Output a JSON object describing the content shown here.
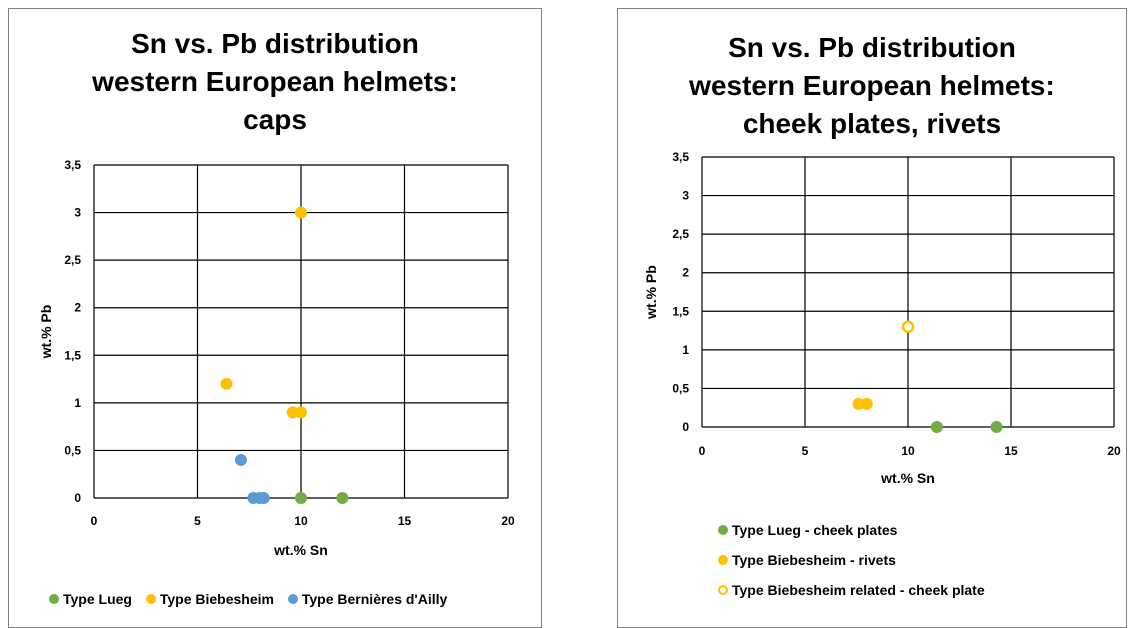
{
  "colors": {
    "lueg": "#70ad47",
    "biebesheim": "#ffc000",
    "bernieres": "#5b9bd5",
    "grid": "#000000"
  },
  "chart_data": [
    {
      "type": "scatter",
      "title_lines": [
        "Sn vs. Pb distribution",
        "western European helmets:",
        "caps"
      ],
      "xlabel": "wt.% Sn",
      "ylabel": "wt.% Pb",
      "xlim": [
        0,
        20
      ],
      "ylim": [
        0,
        3.5
      ],
      "xticks": [
        "0",
        "5",
        "10",
        "15",
        "20"
      ],
      "yticks": [
        "0",
        "0,5",
        "1",
        "1,5",
        "2",
        "2,5",
        "3",
        "3,5"
      ],
      "grid": true,
      "legend_position": "bottom",
      "series": [
        {
          "name": "Type Lueg",
          "color": "#70ad47",
          "marker": "filled",
          "points": [
            [
              10,
              0
            ],
            [
              12,
              0
            ]
          ]
        },
        {
          "name": "Type Biebesheim",
          "color": "#ffc000",
          "marker": "filled",
          "points": [
            [
              10,
              3
            ],
            [
              6.4,
              1.2
            ],
            [
              9.6,
              0.9
            ],
            [
              10,
              0.9
            ]
          ]
        },
        {
          "name": "Type Bernières d'Ailly",
          "color": "#5b9bd5",
          "marker": "filled",
          "points": [
            [
              7.1,
              0.4
            ],
            [
              7.7,
              0
            ],
            [
              8,
              0
            ],
            [
              8.2,
              0
            ]
          ]
        }
      ]
    },
    {
      "type": "scatter",
      "title_lines": [
        "Sn vs. Pb distribution",
        "western European helmets:",
        "cheek plates, rivets"
      ],
      "xlabel": "wt.% Sn",
      "ylabel": "wt.% Pb",
      "xlim": [
        0,
        20
      ],
      "ylim": [
        0,
        3.5
      ],
      "xticks": [
        "0",
        "5",
        "10",
        "15",
        "20"
      ],
      "yticks": [
        "0",
        "0,5",
        "1",
        "1,5",
        "2",
        "2,5",
        "3",
        "3,5"
      ],
      "grid": true,
      "legend_position": "bottom",
      "series": [
        {
          "name": "Type Lueg - cheek plates",
          "color": "#70ad47",
          "marker": "filled",
          "points": [
            [
              11.4,
              0
            ],
            [
              14.3,
              0
            ]
          ]
        },
        {
          "name": "Type Biebesheim - rivets",
          "color": "#ffc000",
          "marker": "filled",
          "points": [
            [
              7.6,
              0.3
            ],
            [
              8,
              0.3
            ]
          ]
        },
        {
          "name": "Type Biebesheim related - cheek plate",
          "color": "#ffc000",
          "marker": "hollow",
          "points": [
            [
              10,
              1.3
            ]
          ]
        }
      ]
    }
  ]
}
